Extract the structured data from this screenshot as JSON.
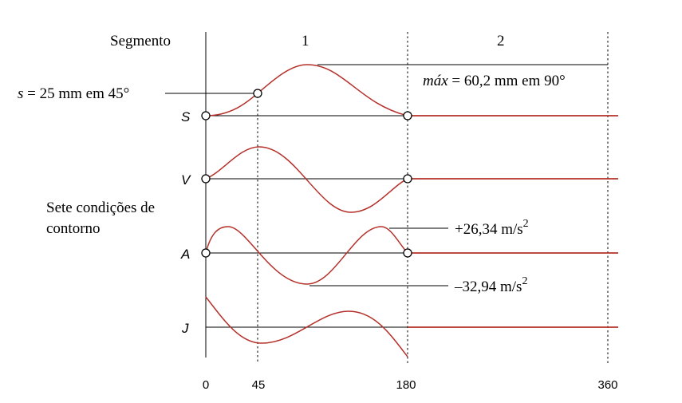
{
  "header": {
    "segment_label": "Segmento",
    "segment_1": "1",
    "segment_2": "2"
  },
  "curves": {
    "s": "S",
    "v": "V",
    "a": "A",
    "j": "J"
  },
  "annotations": {
    "s_point_var": "s",
    "s_point_rest": " = 25 mm em  45°",
    "max_var": "máx",
    "max_rest": " = 60,2 mm em 90°",
    "boundary_line1": "Sete condições de",
    "boundary_line2": "contorno",
    "accel_max": "+26,34  m/s",
    "accel_min": "–32,94  m/s",
    "accel_unit_exp": "2"
  },
  "x_ticks": [
    "0",
    "45",
    "180",
    "360"
  ],
  "colors": {
    "curve": "#b5302a",
    "axis": "#000000"
  }
}
